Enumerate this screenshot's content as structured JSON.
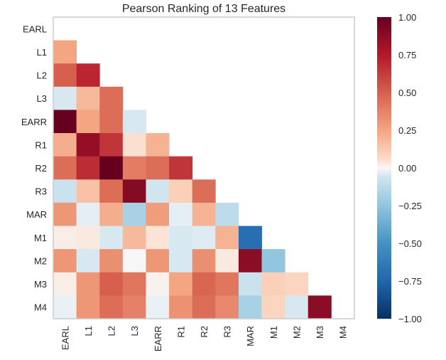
{
  "chart_data": {
    "type": "heatmap",
    "title": "Pearson Ranking of 13 Features",
    "features": [
      "EARL",
      "L1",
      "L2",
      "L3",
      "EARR",
      "R1",
      "R2",
      "R3",
      "MAR",
      "M1",
      "M2",
      "M3",
      "M4"
    ],
    "lower_triangle_only": true,
    "values": [
      [],
      [
        0.25
      ],
      [
        0.5,
        0.7
      ],
      [
        -0.05,
        0.18,
        0.45
      ],
      [
        1.0,
        0.25,
        0.45,
        -0.05
      ],
      [
        0.22,
        0.85,
        0.65,
        0.05,
        0.2
      ],
      [
        0.45,
        0.68,
        1.0,
        0.4,
        0.45,
        0.65
      ],
      [
        -0.08,
        0.15,
        0.45,
        0.9,
        -0.06,
        0.1,
        0.45
      ],
      [
        0.3,
        -0.03,
        0.22,
        -0.18,
        0.28,
        -0.03,
        0.2,
        -0.12
      ],
      [
        0.02,
        0.03,
        -0.05,
        0.18,
        0.04,
        -0.05,
        -0.04,
        0.2,
        -0.7
      ],
      [
        0.3,
        -0.05,
        0.33,
        0.0,
        0.3,
        -0.05,
        0.33,
        0.03,
        0.88,
        -0.25
      ],
      [
        0.02,
        0.3,
        0.5,
        0.42,
        0.01,
        0.25,
        0.48,
        0.42,
        -0.08,
        0.1,
        0.08
      ],
      [
        -0.02,
        0.3,
        0.45,
        0.38,
        -0.02,
        0.32,
        0.45,
        0.35,
        -0.18,
        0.08,
        -0.05,
        0.88
      ]
    ],
    "colorbar": {
      "min": -1.0,
      "max": 1.0,
      "ticks": [
        "1.00",
        "0.75",
        "0.50",
        "0.25",
        "0.00",
        "−0.25",
        "−0.50",
        "−0.75",
        "−1.00"
      ],
      "colormap": "RdBu_r"
    },
    "grid": false,
    "legend": "colorbar-right"
  }
}
